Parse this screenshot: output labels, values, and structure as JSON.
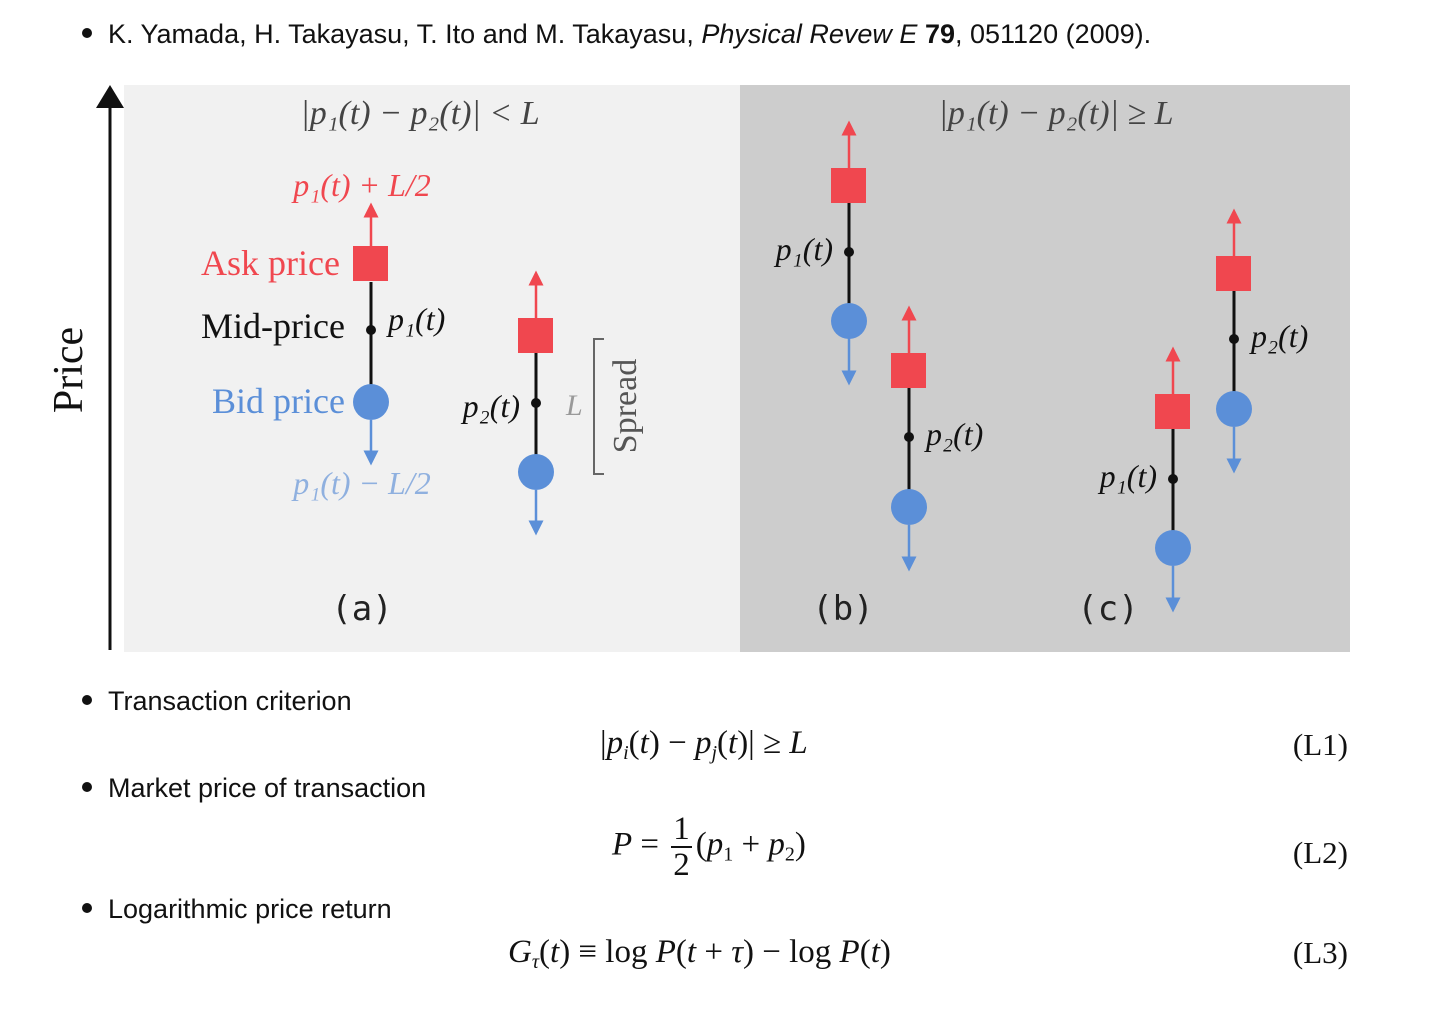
{
  "reference": {
    "authors": "K. Yamada, H. Takayasu, T. Ito and M. Takayasu, ",
    "journal": "Physical Revew E",
    "volume": "79",
    "rest": ", 051120 (2009)."
  },
  "figure": {
    "axis_label": "Price",
    "panel_a": {
      "condition": "|p₁(t) − p₂(t)| < L",
      "upper_bound": "p₁(t) + L/2",
      "lower_bound": "p₁(t) − L/2",
      "ask_label": "Ask price",
      "mid_label": "Mid-price",
      "bid_label": "Bid price",
      "p1_label": "p₁(t)",
      "p2_label": "p₂(t)",
      "L_label": "L",
      "spread_label": "Spread",
      "panel_label": "(a)"
    },
    "panel_bc": {
      "condition": "|p₁(t) − p₂(t)| ≥ L",
      "b_p1_label": "p₁(t)",
      "b_p2_label": "p₂(t)",
      "c_p1_label": "p₁(t)",
      "c_p2_label": "p₂(t)",
      "panel_b_label": "(b)",
      "panel_c_label": "(c)"
    },
    "colors": {
      "ask": "#f0474f",
      "bid": "#5b8fd8",
      "panel_a_bg": "#f1f1f1",
      "panel_bc_bg": "#cdcdcd"
    }
  },
  "bullets": [
    {
      "text": "Transaction criterion"
    },
    {
      "text": "Market price of transaction"
    },
    {
      "text": "Logarithmic price return"
    }
  ],
  "equations": {
    "L1": {
      "number": "(L1)"
    },
    "L2": {
      "number": "(L2)",
      "numerator": "1",
      "denominator": "2"
    },
    "L3": {
      "number": "(L3)"
    }
  }
}
